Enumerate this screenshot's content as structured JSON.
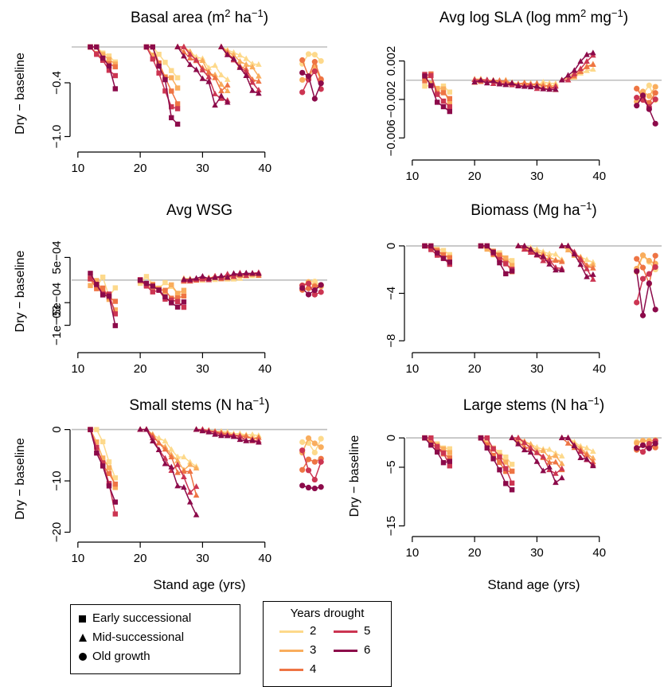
{
  "figure": {
    "shared_xlabel": "Stand age (yrs)",
    "shared_ylabel": "Dry − baseline",
    "baseline_color": "#bdbdbd"
  },
  "legend_type": {
    "items": [
      {
        "marker": "square",
        "label": "Early successional"
      },
      {
        "marker": "triangle",
        "label": "Mid-successional"
      },
      {
        "marker": "circle",
        "label": "Old growth"
      }
    ]
  },
  "legend_years": {
    "title": "Years drought",
    "items": [
      {
        "label": "2",
        "color": "#fdd98b"
      },
      {
        "label": "3",
        "color": "#f9ad5d"
      },
      {
        "label": "4",
        "color": "#ee7444"
      },
      {
        "label": "5",
        "color": "#cc3552"
      },
      {
        "label": "6",
        "color": "#8c0a4a"
      }
    ]
  },
  "chart_data": [
    {
      "type": "line",
      "title": "Basal area (m² ha⁻¹)",
      "title_main": "Basal area (m",
      "title_sup1": "2",
      "title_mid": " ha",
      "title_sup2": "−1",
      "title_end": ")",
      "xlabel": "",
      "ylabel": "Dry − baseline",
      "xlim": [
        9,
        50
      ],
      "ylim": [
        -1.12,
        0.08
      ],
      "xticks": [
        10,
        20,
        30,
        40
      ],
      "yticks": [
        -1.0,
        -0.4
      ],
      "ytick_labels": [
        "−1.0",
        "−0.4"
      ],
      "approximate": true,
      "groups": [
        {
          "stand": "Early successional",
          "marker": "square",
          "x0": 12,
          "x1": 16,
          "maxdrop": 0.42
        },
        {
          "stand": "Early successional",
          "marker": "square",
          "x0": 21,
          "x1": 26,
          "maxdrop": 0.95
        },
        {
          "stand": "Mid-successional",
          "marker": "triangle",
          "x0": 26,
          "x1": 34,
          "maxdrop": 0.83
        },
        {
          "stand": "Mid-successional",
          "marker": "triangle",
          "x0": 33,
          "x1": 39,
          "maxdrop": 0.55
        },
        {
          "stand": "Old growth",
          "marker": "circle",
          "x0": 46,
          "x1": 49,
          "maxdrop": 0.75,
          "old": true
        }
      ]
    },
    {
      "type": "line",
      "title": "Avg log SLA (log mm² mg⁻¹)",
      "title_main": "Avg log SLA (log mm",
      "title_sup1": "2",
      "title_mid": " mg",
      "title_sup2": "−1",
      "title_end": ")",
      "xlabel": "",
      "ylabel": "",
      "xlim": [
        9,
        50
      ],
      "ylim": [
        -0.0078,
        0.0042
      ],
      "xticks": [
        10,
        20,
        30,
        40
      ],
      "yticks": [
        0.002,
        -0.002,
        -0.006
      ],
      "ytick_labels": [
        "0.002",
        "−0.002",
        "−0.006"
      ],
      "approximate": true,
      "groups": [
        {
          "stand": "Early successional",
          "marker": "square",
          "x0": 12,
          "x1": 16,
          "maxdrop": 0.0035,
          "wiggle": true
        },
        {
          "stand": "Mid-successional",
          "marker": "triangle",
          "x0": 20,
          "x1": 33,
          "maxdrop": 0.0012,
          "wiggle": true
        },
        {
          "stand": "Mid-successional",
          "marker": "triangle",
          "x0": 34,
          "x1": 39,
          "maxdrop": -0.0032
        },
        {
          "stand": "Old growth",
          "marker": "circle",
          "x0": 46,
          "x1": 49,
          "maxdrop": 0.0055,
          "old": true
        }
      ]
    },
    {
      "type": "line",
      "title": "Avg WSG",
      "title_main": "Avg WSG",
      "title_sup1": "",
      "title_mid": "",
      "title_sup2": "",
      "title_end": "",
      "xlabel": "",
      "ylabel": "Dry − baseline",
      "xlim": [
        9,
        50
      ],
      "ylim": [
        -0.0015,
        0.001
      ],
      "xticks": [
        10,
        20,
        30,
        40
      ],
      "yticks": [
        0.0005,
        -0.0005,
        -0.001
      ],
      "ytick_labels": [
        "5e−04",
        "−5e−04",
        "−1e−03"
      ],
      "approximate": true,
      "groups": [
        {
          "stand": "Early successional",
          "marker": "square",
          "x0": 12,
          "x1": 16,
          "maxdrop": 0.0009,
          "wiggle": true
        },
        {
          "stand": "Early successional",
          "marker": "square",
          "x0": 20,
          "x1": 27,
          "maxdrop": 0.0006,
          "wiggle": true
        },
        {
          "stand": "Mid-successional",
          "marker": "triangle",
          "x0": 27,
          "x1": 39,
          "maxdrop": -0.0002,
          "wiggle": true
        },
        {
          "stand": "Old growth",
          "marker": "circle",
          "x0": 46,
          "x1": 49,
          "maxdrop": 0.0004,
          "old": true,
          "wiggle": true
        }
      ]
    },
    {
      "type": "line",
      "title": "Biomass (Mg ha⁻¹)",
      "title_main": "Biomass (Mg ha",
      "title_sup1": "",
      "title_mid": "",
      "title_sup2": "−1",
      "title_end": ")",
      "xlabel": "",
      "ylabel": "",
      "xlim": [
        9,
        50
      ],
      "ylim": [
        -8.6,
        0.8
      ],
      "xticks": [
        10,
        20,
        30,
        40
      ],
      "yticks": [
        0,
        -4,
        -8
      ],
      "ytick_labels": [
        "0",
        "−4",
        "−8"
      ],
      "approximate": true,
      "groups": [
        {
          "stand": "Early successional",
          "marker": "square",
          "x0": 12,
          "x1": 16,
          "maxdrop": 1.8
        },
        {
          "stand": "Early successional",
          "marker": "square",
          "x0": 21,
          "x1": 26,
          "maxdrop": 3.0
        },
        {
          "stand": "Mid-successional",
          "marker": "triangle",
          "x0": 27,
          "x1": 34,
          "maxdrop": 2.4
        },
        {
          "stand": "Mid-successional",
          "marker": "triangle",
          "x0": 34,
          "x1": 39,
          "maxdrop": 3.2
        },
        {
          "stand": "Old growth",
          "marker": "circle",
          "x0": 46,
          "x1": 49,
          "maxdrop": 6.4,
          "old": true
        }
      ]
    },
    {
      "type": "line",
      "title": "Small stems (N ha⁻¹)",
      "title_main": "Small stems (N ha",
      "title_sup1": "",
      "title_mid": "",
      "title_sup2": "−1",
      "title_end": ")",
      "xlabel": "Stand age (yrs)",
      "ylabel": "Dry − baseline",
      "xlim": [
        9,
        50
      ],
      "ylim": [
        -21,
        1.8
      ],
      "xticks": [
        10,
        20,
        30,
        40
      ],
      "yticks": [
        0,
        -10,
        -20
      ],
      "ytick_labels": [
        "0",
        "−10",
        "−20"
      ],
      "approximate": true,
      "groups": [
        {
          "stand": "Early successional",
          "marker": "square",
          "x0": 12,
          "x1": 16,
          "maxdrop": 19
        },
        {
          "stand": "Mid-successional",
          "marker": "triangle",
          "x0": 20,
          "x1": 29,
          "maxdrop": 18
        },
        {
          "stand": "Mid-successional",
          "marker": "triangle",
          "x0": 29,
          "x1": 39,
          "maxdrop": 3
        },
        {
          "stand": "Old growth",
          "marker": "circle",
          "x0": 46,
          "x1": 49,
          "maxdrop": 13,
          "old": true
        }
      ]
    },
    {
      "type": "line",
      "title": "Large stems (N ha⁻¹)",
      "title_main": "Large stems (N ha",
      "title_sup1": "",
      "title_mid": "",
      "title_sup2": "−1",
      "title_end": ")",
      "xlabel": "Stand age (yrs)",
      "ylabel": "Dry − baseline",
      "xlim": [
        9,
        50
      ],
      "ylim": [
        -16,
        3
      ],
      "xticks": [
        10,
        20,
        30,
        40
      ],
      "yticks": [
        0,
        -5,
        -15
      ],
      "ytick_labels": [
        "0",
        "−5",
        "−15"
      ],
      "approximate": true,
      "groups": [
        {
          "stand": "Early successional",
          "marker": "square",
          "x0": 12,
          "x1": 16,
          "maxdrop": 5.5
        },
        {
          "stand": "Early successional",
          "marker": "square",
          "x0": 21,
          "x1": 26,
          "maxdrop": 10
        },
        {
          "stand": "Mid-successional",
          "marker": "triangle",
          "x0": 26,
          "x1": 34,
          "maxdrop": 8.5
        },
        {
          "stand": "Mid-successional",
          "marker": "triangle",
          "x0": 34,
          "x1": 39,
          "maxdrop": 6.5
        },
        {
          "stand": "Old growth",
          "marker": "circle",
          "x0": 46,
          "x1": 49,
          "maxdrop": 3.5,
          "old": true
        }
      ]
    }
  ]
}
